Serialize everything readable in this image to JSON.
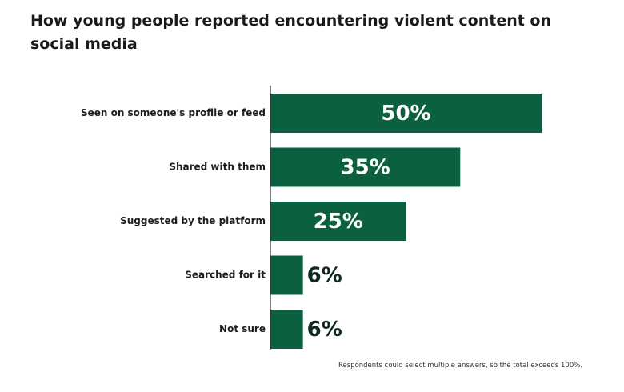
{
  "chart_data": {
    "type": "bar",
    "orientation": "horizontal",
    "title": "How young people reported encountering violent content on social media",
    "categories": [
      "Seen on someone's profile or feed",
      "Shared with them",
      "Suggested by the platform",
      "Searched for it",
      "Not sure"
    ],
    "values": [
      50,
      35,
      25,
      6,
      6
    ],
    "value_labels": [
      "50%",
      "35%",
      "25%",
      "6%",
      "6%"
    ],
    "xlim": [
      0,
      50
    ],
    "grid": false,
    "bar_color": "#0b6040",
    "note": "Respondents could select multiple answers, so the total exceeds 100%."
  }
}
